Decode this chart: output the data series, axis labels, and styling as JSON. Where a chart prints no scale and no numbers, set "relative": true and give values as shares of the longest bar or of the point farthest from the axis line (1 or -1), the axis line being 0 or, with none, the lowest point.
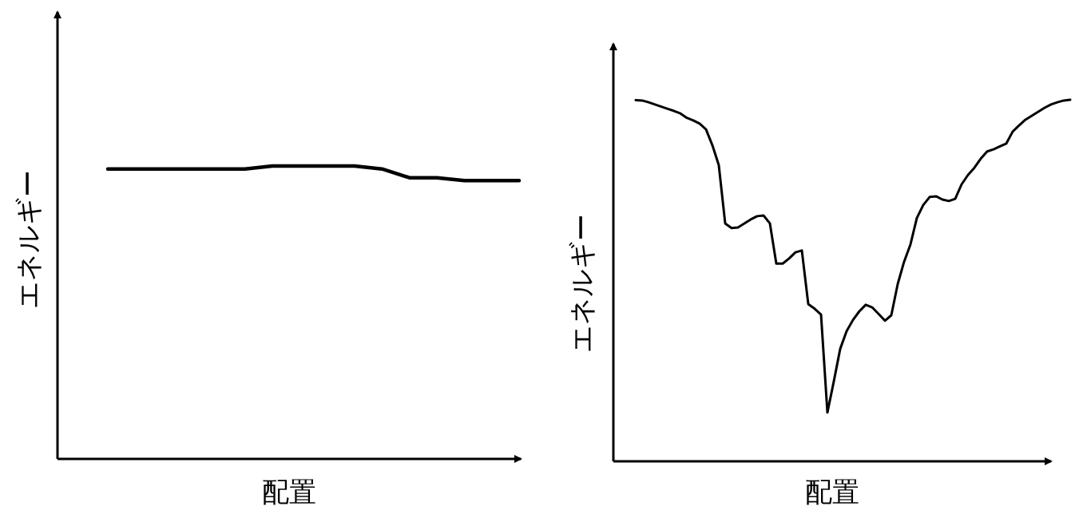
{
  "chart_data": [
    {
      "type": "line",
      "relative": true,
      "xlabel": "配置",
      "ylabel": "エネルギー",
      "categories": [
        null,
        null,
        null,
        null,
        null,
        null,
        null,
        null,
        null,
        null,
        null,
        null,
        null,
        null,
        null,
        null
      ],
      "series": [
        {
          "color": "#000000",
          "values": [
            0.99,
            0.99,
            0.99,
            0.99,
            0.99,
            0.99,
            1,
            1,
            1,
            1,
            0.99,
            0.96,
            0.96,
            0.95,
            0.95,
            0.95
          ]
        }
      ]
    },
    {
      "type": "line",
      "relative": true,
      "xlabel": "配置",
      "ylabel": "エネルギー",
      "categories": [
        null,
        null,
        null,
        null,
        null,
        null,
        null,
        null,
        null,
        null,
        null,
        null,
        null,
        null,
        null,
        null,
        null,
        null,
        null,
        null,
        null,
        null,
        null,
        null,
        null,
        null,
        null,
        null,
        null,
        null,
        null,
        null,
        null,
        null,
        null,
        null,
        null,
        null,
        null,
        null,
        null,
        null,
        null,
        null,
        null,
        null,
        null,
        null,
        null,
        null,
        null,
        null,
        null,
        null,
        null,
        null,
        null,
        null,
        null,
        null,
        null,
        null,
        null,
        null,
        null,
        null,
        null,
        null,
        null
      ],
      "series": [
        {
          "color": "#000000",
          "values": [
            0.999,
            0.998,
            0.993,
            0.987,
            0.981,
            0.975,
            0.969,
            0.962,
            0.95,
            0.943,
            0.934,
            0.918,
            0.874,
            0.819,
            0.658,
            0.645,
            0.647,
            0.658,
            0.669,
            0.678,
            0.68,
            0.658,
            0.547,
            0.547,
            0.561,
            0.578,
            0.583,
            0.435,
            0.422,
            0.406,
            0.135,
            0.221,
            0.311,
            0.36,
            0.391,
            0.415,
            0.433,
            0.426,
            0.408,
            0.389,
            0.404,
            0.49,
            0.552,
            0.6,
            0.673,
            0.709,
            0.731,
            0.733,
            0.724,
            0.72,
            0.726,
            0.766,
            0.792,
            0.812,
            0.837,
            0.857,
            0.863,
            0.871,
            0.879,
            0.912,
            0.929,
            0.945,
            0.956,
            0.967,
            0.978,
            0.987,
            0.993,
            0.998,
            1
          ]
        }
      ]
    }
  ]
}
